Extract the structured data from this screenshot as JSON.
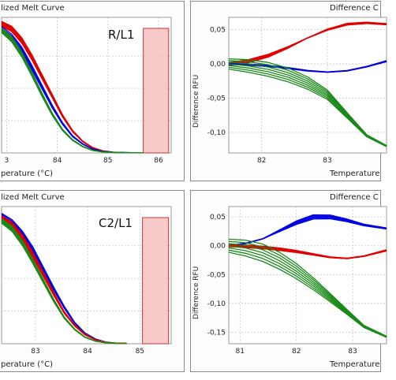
{
  "chart_data": [
    {
      "type": "line",
      "title": "lized Melt Curve",
      "panel_tag": "R/L1",
      "xlabel": "perature (°C)",
      "ylabel": "",
      "xlim": [
        82.9,
        86.25
      ],
      "ylim": [
        0,
        1.05
      ],
      "xticks": [
        "3",
        "84",
        "85",
        "86"
      ],
      "xtick_values": [
        83,
        84,
        85,
        86
      ],
      "grid": true,
      "highlight_region": [
        85.7,
        86.2
      ],
      "series": [
        {
          "color": "#e00000",
          "count": 12,
          "x": [
            82.9,
            83.1,
            83.3,
            83.5,
            83.7,
            83.9,
            84.1,
            84.3,
            84.5,
            84.7,
            84.9,
            85.1,
            85.3,
            85.5,
            85.7
          ],
          "y": [
            1.0,
            0.96,
            0.87,
            0.74,
            0.59,
            0.44,
            0.29,
            0.17,
            0.09,
            0.04,
            0.015,
            0.006,
            0.003,
            0.002,
            0.002
          ]
        },
        {
          "color": "#0000e0",
          "count": 4,
          "x": [
            82.9,
            83.1,
            83.3,
            83.5,
            83.7,
            83.9,
            84.1,
            84.3,
            84.5,
            84.7,
            84.9,
            85.1,
            85.3,
            85.5,
            85.7
          ],
          "y": [
            0.96,
            0.9,
            0.8,
            0.66,
            0.51,
            0.36,
            0.23,
            0.13,
            0.07,
            0.03,
            0.012,
            0.005,
            0.003,
            0.002,
            0.002
          ]
        },
        {
          "color": "#1a8a1a",
          "count": 6,
          "x": [
            82.9,
            83.1,
            83.3,
            83.5,
            83.7,
            83.9,
            84.1,
            84.3,
            84.5,
            84.7,
            84.9,
            85.1,
            85.3,
            85.5,
            85.7
          ],
          "y": [
            0.95,
            0.88,
            0.76,
            0.61,
            0.45,
            0.3,
            0.18,
            0.1,
            0.05,
            0.02,
            0.008,
            0.004,
            0.002,
            0.002,
            0.002
          ]
        }
      ]
    },
    {
      "type": "line",
      "title": "Difference C",
      "xlabel": "Temperature",
      "ylabel": "Difference RFU",
      "xlim": [
        81.5,
        83.9
      ],
      "ylim": [
        -0.13,
        0.068
      ],
      "xticks": [
        "82",
        "83"
      ],
      "xtick_values": [
        82,
        83
      ],
      "yticks": [
        "0,05",
        "0,00",
        "-0,05",
        "-0,10"
      ],
      "ytick_values": [
        0.05,
        0.0,
        -0.05,
        -0.1
      ],
      "grid": true,
      "series": [
        {
          "color": "#e00000",
          "count": 14,
          "x": [
            81.5,
            81.8,
            82.1,
            82.4,
            82.7,
            83.0,
            83.3,
            83.6,
            83.9
          ],
          "y": [
            0.0,
            0.004,
            0.012,
            0.024,
            0.038,
            0.05,
            0.058,
            0.06,
            0.058
          ]
        },
        {
          "color": "#0000e0",
          "count": 5,
          "x": [
            81.5,
            81.8,
            82.1,
            82.4,
            82.7,
            83.0,
            83.3,
            83.6,
            83.9
          ],
          "y": [
            0.0,
            -0.001,
            -0.003,
            -0.006,
            -0.01,
            -0.012,
            -0.01,
            -0.004,
            0.004
          ]
        },
        {
          "color": "#1a8a1a",
          "count": 7,
          "x": [
            81.5,
            81.8,
            82.1,
            82.4,
            82.7,
            83.0,
            83.3,
            83.6,
            83.9
          ],
          "y": [
            0.0,
            -0.003,
            -0.008,
            -0.016,
            -0.028,
            -0.045,
            -0.075,
            -0.105,
            -0.12
          ]
        }
      ]
    },
    {
      "type": "line",
      "title": "lized Melt Curve",
      "panel_tag": "C2/L1",
      "xlabel": "perature (°C)",
      "ylabel": "",
      "xlim": [
        82.35,
        85.6
      ],
      "ylim": [
        0,
        1.05
      ],
      "xticks": [
        "83",
        "84",
        "85"
      ],
      "xtick_values": [
        83,
        84,
        85
      ],
      "grid": true,
      "highlight_region": [
        85.05,
        85.55
      ],
      "series": [
        {
          "color": "#0000e0",
          "count": 5,
          "x": [
            82.35,
            82.55,
            82.75,
            82.95,
            83.15,
            83.35,
            83.55,
            83.75,
            83.95,
            84.15,
            84.35,
            84.55,
            84.75
          ],
          "y": [
            0.98,
            0.93,
            0.84,
            0.72,
            0.57,
            0.42,
            0.28,
            0.16,
            0.08,
            0.035,
            0.012,
            0.004,
            0.002
          ]
        },
        {
          "color": "#e00000",
          "count": 12,
          "x": [
            82.35,
            82.55,
            82.75,
            82.95,
            83.15,
            83.35,
            83.55,
            83.75,
            83.95,
            84.15,
            84.35,
            84.55,
            84.75
          ],
          "y": [
            0.96,
            0.91,
            0.81,
            0.68,
            0.53,
            0.38,
            0.24,
            0.14,
            0.07,
            0.03,
            0.01,
            0.004,
            0.002
          ]
        },
        {
          "color": "#1a8a1a",
          "count": 7,
          "x": [
            82.35,
            82.55,
            82.75,
            82.95,
            83.15,
            83.35,
            83.55,
            83.75,
            83.95,
            84.15,
            84.35,
            84.55,
            84.75
          ],
          "y": [
            0.94,
            0.88,
            0.77,
            0.63,
            0.48,
            0.33,
            0.2,
            0.11,
            0.05,
            0.02,
            0.007,
            0.003,
            0.002
          ]
        }
      ]
    },
    {
      "type": "line",
      "title": "Difference C",
      "xlabel": "Temperature",
      "ylabel": "Difference RFU",
      "xlim": [
        80.8,
        83.6
      ],
      "ylim": [
        -0.17,
        0.068
      ],
      "xticks": [
        "81",
        "82",
        "83"
      ],
      "xtick_values": [
        81,
        82,
        83
      ],
      "yticks": [
        "0,05",
        "0,00",
        "-0,05",
        "-0,10",
        "-0,15"
      ],
      "ytick_values": [
        0.05,
        0.0,
        -0.05,
        -0.1,
        -0.15
      ],
      "grid": true,
      "series": [
        {
          "color": "#0000e0",
          "count": 5,
          "x": [
            80.8,
            81.1,
            81.4,
            81.7,
            82.0,
            82.3,
            82.6,
            82.9,
            83.2,
            83.6
          ],
          "y": [
            0.0,
            0.004,
            0.012,
            0.026,
            0.04,
            0.05,
            0.05,
            0.044,
            0.036,
            0.03
          ]
        },
        {
          "color": "#e00000",
          "count": 14,
          "x": [
            80.8,
            81.1,
            81.4,
            81.7,
            82.0,
            82.3,
            82.6,
            82.9,
            83.2,
            83.6
          ],
          "y": [
            0.0,
            -0.001,
            -0.003,
            -0.006,
            -0.01,
            -0.015,
            -0.02,
            -0.022,
            -0.018,
            -0.008
          ]
        },
        {
          "color": "#1a8a1a",
          "count": 7,
          "x": [
            80.8,
            81.1,
            81.4,
            81.7,
            82.0,
            82.3,
            82.6,
            82.9,
            83.2,
            83.6
          ],
          "y": [
            0.0,
            -0.004,
            -0.012,
            -0.026,
            -0.044,
            -0.066,
            -0.09,
            -0.115,
            -0.14,
            -0.158
          ]
        }
      ]
    }
  ]
}
